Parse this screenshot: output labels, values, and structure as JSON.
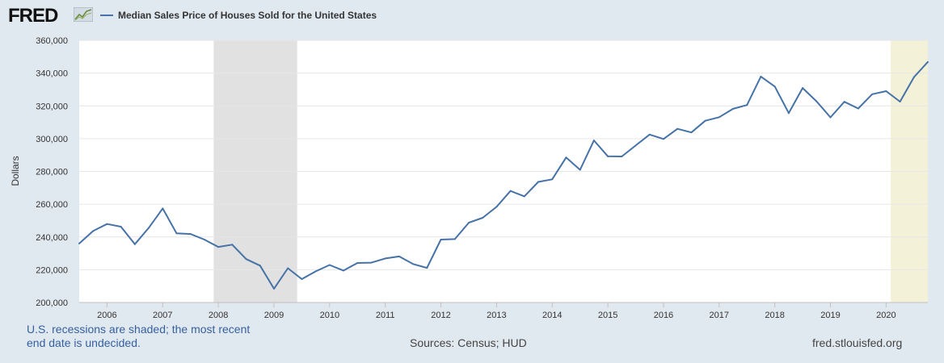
{
  "header": {
    "logo_text": "FRED",
    "logo_icon": "chart-line-icon"
  },
  "footer": {
    "recession_note_line1": "U.S. recessions are shaded; the most recent",
    "recession_note_line2": "end date is undecided.",
    "source": "Sources: Census; HUD",
    "site": "fred.stlouisfed.org"
  },
  "colors": {
    "line": "#4572a7",
    "recession": "#e1e1e1",
    "recent_recession": "#f4f1d9",
    "background": "#e1e9f0",
    "plot_background": "#ffffff"
  },
  "chart_data": {
    "type": "line",
    "title": "",
    "xlabel": "",
    "ylabel": "Dollars",
    "grid": true,
    "ylim": [
      200000,
      360000
    ],
    "y_ticks": [
      "200,000",
      "220,000",
      "240,000",
      "260,000",
      "280,000",
      "300,000",
      "320,000",
      "340,000",
      "360,000"
    ],
    "y_tick_values": [
      200000,
      220000,
      240000,
      260000,
      280000,
      300000,
      320000,
      340000,
      360000
    ],
    "x_range": [
      "2005-07",
      "2020-10"
    ],
    "x_ticks": [
      "2006",
      "2007",
      "2008",
      "2009",
      "2010",
      "2011",
      "2012",
      "2013",
      "2014",
      "2015",
      "2016",
      "2017",
      "2018",
      "2019",
      "2020"
    ],
    "recessions": [
      {
        "start": "2007-12",
        "end": "2009-06"
      },
      {
        "start": "2020-02",
        "end": "2020-10"
      }
    ],
    "series": [
      {
        "name": "Median Sales Price of Houses Sold for the United States",
        "x": [
          "2005-07",
          "2005-10",
          "2006-01",
          "2006-04",
          "2006-07",
          "2006-10",
          "2007-01",
          "2007-04",
          "2007-07",
          "2007-10",
          "2008-01",
          "2008-04",
          "2008-07",
          "2008-10",
          "2009-01",
          "2009-04",
          "2009-07",
          "2009-10",
          "2010-01",
          "2010-04",
          "2010-07",
          "2010-10",
          "2011-01",
          "2011-04",
          "2011-07",
          "2011-10",
          "2012-01",
          "2012-04",
          "2012-07",
          "2012-10",
          "2013-01",
          "2013-04",
          "2013-07",
          "2013-10",
          "2014-01",
          "2014-04",
          "2014-07",
          "2014-10",
          "2015-01",
          "2015-04",
          "2015-07",
          "2015-10",
          "2016-01",
          "2016-04",
          "2016-07",
          "2016-10",
          "2017-01",
          "2017-04",
          "2017-07",
          "2017-10",
          "2018-01",
          "2018-04",
          "2018-07",
          "2018-10",
          "2019-01",
          "2019-04",
          "2019-07",
          "2019-10",
          "2020-01",
          "2020-04",
          "2020-07",
          "2020-10"
        ],
        "values": [
          236000,
          243600,
          247900,
          246300,
          235600,
          245600,
          257400,
          242200,
          241800,
          238400,
          233900,
          235300,
          226500,
          222500,
          208400,
          220900,
          214300,
          219000,
          222900,
          219500,
          224100,
          224300,
          226900,
          228100,
          223500,
          221100,
          238400,
          238700,
          248700,
          251700,
          258400,
          268100,
          264800,
          273600,
          275200,
          288500,
          281000,
          298900,
          289200,
          289100,
          295800,
          302500,
          299800,
          306000,
          303800,
          310900,
          313100,
          318200,
          320500,
          337900,
          331800,
          315600,
          330900,
          322800,
          313000,
          322500,
          318400,
          327100,
          329000,
          322600,
          337500,
          346800
        ]
      }
    ]
  }
}
